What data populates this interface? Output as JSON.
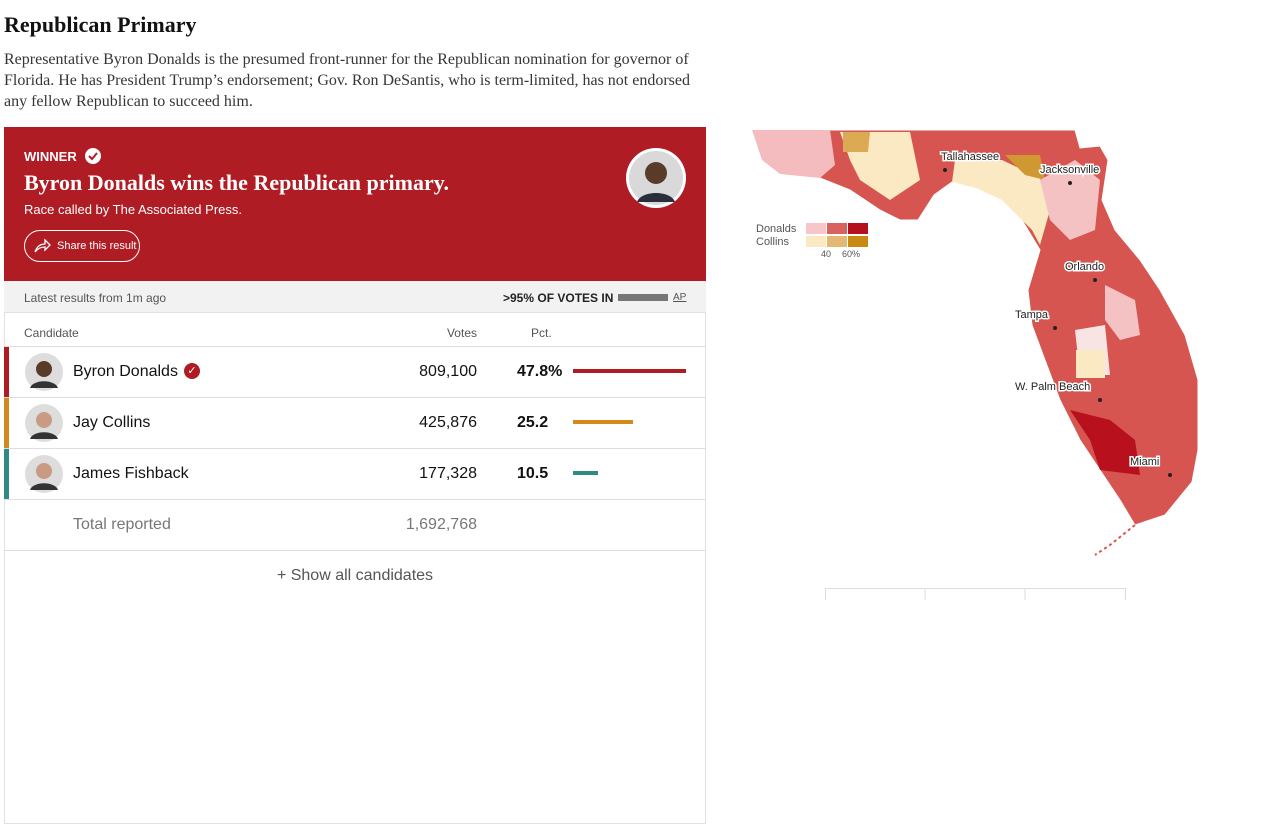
{
  "header": {
    "title": "Republican Primary",
    "description": "Representative Byron Donalds is the presumed front-runner for the Republican nomination for governor of Florida. He has President Trump’s endorsement; Gov. Ron DeSantis, who is term-limited, has not endorsed any fellow Republican to succeed him."
  },
  "winner": {
    "label": "WINNER",
    "headline": "Byron Donalds wins the Republican primary.",
    "called": "Race called by The Associated Press.",
    "share": "Share this result"
  },
  "status": {
    "updated": "Latest results from 1m ago",
    "reporting": ">95% OF VOTES IN",
    "source": "AP"
  },
  "table": {
    "columns": [
      "Candidate",
      "Votes",
      "Pct."
    ],
    "rows": [
      {
        "name": "Byron Donalds",
        "votes": "809,100",
        "pct": {
          "value": 47.8,
          "label": "47.8%"
        },
        "color": "#b01c24"
      },
      {
        "name": "Jay Collins",
        "votes": "425,876",
        "pct": 25.2,
        "color": "#d4891b"
      },
      {
        "name": "James Fishback",
        "votes": "177,328",
        "pct": 10.5,
        "color": "#2e8a82"
      }
    ],
    "total_label": "Total reported",
    "total": "1,692,768",
    "show_all": "+ Show all candidates"
  },
  "map": {
    "cities": [
      "Tallahassee",
      "Jacksonville",
      "Orlando",
      "Tampa",
      "W. Palm Beach",
      "Miami"
    ],
    "legend": {
      "series": [
        "Donalds",
        "Collins"
      ],
      "ticks": [
        "40",
        "60%"
      ]
    }
  }
}
